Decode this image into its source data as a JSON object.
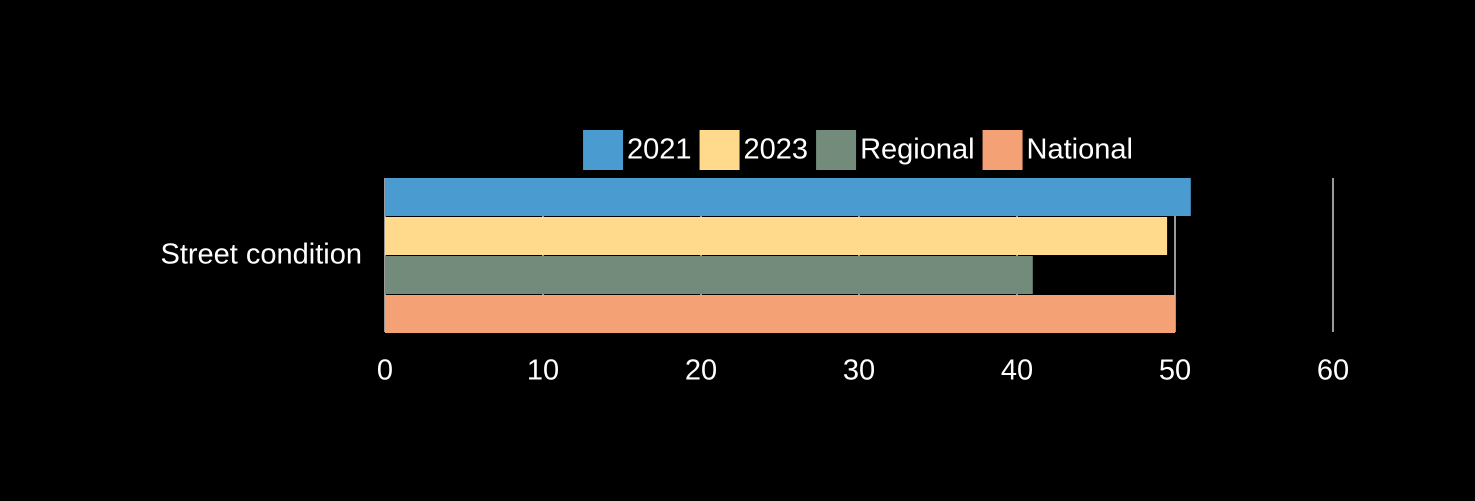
{
  "chart_data": {
    "type": "bar",
    "orientation": "horizontal",
    "categories": [
      "Street condition"
    ],
    "series": [
      {
        "name": "2021",
        "values": [
          51
        ],
        "color": "#4A9BCF"
      },
      {
        "name": "2023",
        "values": [
          49.5
        ],
        "color": "#FFD98C"
      },
      {
        "name": "Regional",
        "values": [
          41
        ],
        "color": "#728B7A"
      },
      {
        "name": "National",
        "values": [
          50
        ],
        "color": "#F5A176"
      }
    ],
    "xlim": [
      0,
      60
    ],
    "x_ticks": [
      0,
      10,
      20,
      30,
      40,
      50,
      60
    ],
    "grid": true,
    "legend_position": "top",
    "background": "#000000",
    "text_color": "#ffffff",
    "grid_color": "#ffffff"
  }
}
